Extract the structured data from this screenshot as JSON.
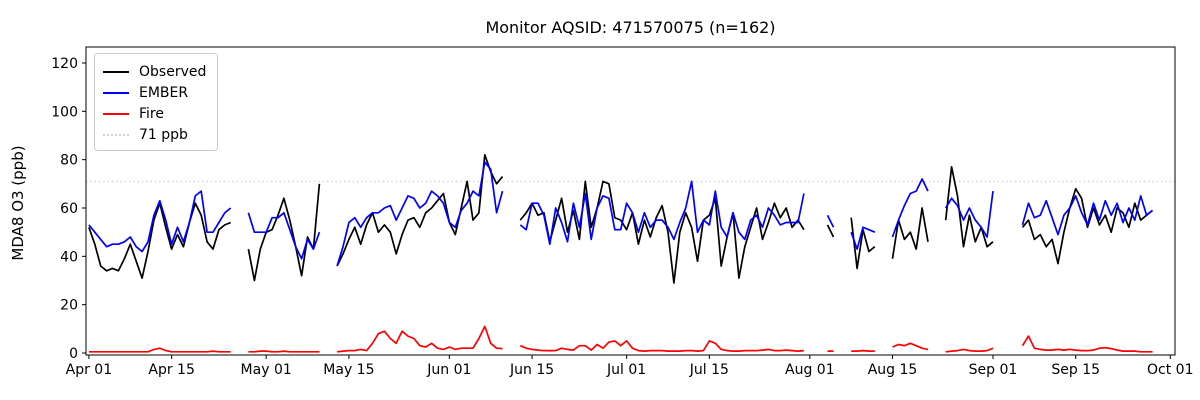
{
  "title": "Monitor AQSID: 471570075 (n=162)",
  "chart_data": {
    "type": "line",
    "title": "Monitor AQSID: 471570075 (n=162)",
    "ylabel": "MDA8 O3 (ppb)",
    "xlabel": "",
    "grid": false,
    "legend_position": "upper left",
    "y_ticks": [
      0,
      20,
      40,
      60,
      80,
      100,
      120
    ],
    "ylim": [
      -0.83,
      126.62
    ],
    "xlim_days": [
      -0.49,
      183.8
    ],
    "x_ticks": [
      {
        "label": "Apr 01",
        "day": 0
      },
      {
        "label": "Apr 15",
        "day": 14
      },
      {
        "label": "May 01",
        "day": 30
      },
      {
        "label": "May 15",
        "day": 44
      },
      {
        "label": "Jun 01",
        "day": 61
      },
      {
        "label": "Jun 15",
        "day": 75
      },
      {
        "label": "Jul 01",
        "day": 91
      },
      {
        "label": "Jul 15",
        "day": 105
      },
      {
        "label": "Aug 01",
        "day": 122
      },
      {
        "label": "Aug 15",
        "day": 136
      },
      {
        "label": "Sep 01",
        "day": 153
      },
      {
        "label": "Sep 15",
        "day": 167
      },
      {
        "label": "Oct 01",
        "day": 183
      }
    ],
    "threshold": {
      "label": "71 ppb",
      "value": 71,
      "color": "#d3d3d3",
      "style": "dotted"
    },
    "legend_items": [
      {
        "label": "Observed",
        "color": "#000000",
        "style": "solid"
      },
      {
        "label": "EMBER",
        "color": "#0000ff",
        "style": "solid"
      },
      {
        "label": "Fire",
        "color": "#ff0000",
        "style": "solid"
      },
      {
        "label": "71 ppb",
        "color": "#d3d3d3",
        "style": "dotted"
      }
    ],
    "x_start_label": "Apr 01",
    "n_points": 162,
    "series": [
      {
        "name": "Observed",
        "color": "#000000",
        "values": [
          52,
          45,
          36,
          34,
          35,
          34,
          39,
          45,
          38,
          31,
          42,
          55,
          62,
          52,
          43,
          49,
          44,
          54,
          62,
          57,
          46,
          43,
          51,
          53,
          54,
          null,
          null,
          43,
          30,
          43,
          50,
          51,
          57,
          64,
          55,
          44,
          32,
          48,
          43,
          70,
          null,
          null,
          36,
          41,
          47,
          52,
          45,
          53,
          58,
          50,
          53,
          50,
          41,
          49,
          55,
          56,
          52,
          58,
          60,
          63,
          66,
          54,
          49,
          60,
          71,
          55,
          58,
          82,
          75,
          70,
          73,
          null,
          null,
          55,
          58,
          62,
          57,
          58,
          46,
          55,
          64,
          50,
          59,
          47,
          71,
          52,
          60,
          71,
          70,
          56,
          55,
          51,
          58,
          45,
          55,
          48,
          56,
          61,
          50,
          29,
          50,
          58,
          52,
          38,
          55,
          57,
          64,
          36,
          48,
          58,
          31,
          44,
          52,
          60,
          47,
          54,
          62,
          56,
          60,
          52,
          55,
          51,
          null,
          null,
          null,
          53,
          48,
          null,
          null,
          56,
          35,
          51,
          42,
          44,
          null,
          null,
          39,
          55,
          47,
          50,
          43,
          60,
          46,
          null,
          null,
          55,
          77,
          65,
          44,
          57,
          46,
          52,
          44,
          46,
          null,
          null,
          null,
          null,
          52,
          55,
          47,
          49,
          44,
          47,
          37,
          50,
          60,
          68,
          64,
          52,
          60,
          53,
          57,
          50,
          60,
          58,
          52,
          62,
          55,
          57,
          59
        ]
      },
      {
        "name": "EMBER",
        "color": "#0000ff",
        "values": [
          53,
          50,
          47,
          44,
          45,
          45,
          46,
          48,
          44,
          42,
          46,
          57,
          63,
          55,
          45,
          52,
          46,
          54,
          65,
          67,
          50,
          50,
          54,
          58,
          60,
          null,
          null,
          58,
          50,
          50,
          50,
          56,
          56,
          58,
          51,
          44,
          39,
          47,
          43,
          50,
          null,
          null,
          36,
          44,
          54,
          56,
          52,
          56,
          58,
          58,
          60,
          61,
          55,
          60,
          65,
          64,
          60,
          62,
          67,
          65,
          62,
          54,
          52,
          59,
          62,
          67,
          65,
          79,
          76,
          58,
          67,
          null,
          null,
          53,
          51,
          62,
          62,
          57,
          45,
          60,
          54,
          46,
          62,
          52,
          66,
          47,
          60,
          65,
          64,
          51,
          51,
          62,
          58,
          50,
          58,
          52,
          55,
          55,
          52,
          47,
          54,
          60,
          71,
          50,
          55,
          53,
          67,
          52,
          48,
          58,
          50,
          47,
          55,
          57,
          52,
          60,
          57,
          53,
          54,
          54,
          54,
          66,
          null,
          null,
          null,
          57,
          52,
          null,
          null,
          50,
          43,
          52,
          51,
          50,
          null,
          null,
          48,
          55,
          61,
          66,
          67,
          72,
          67,
          null,
          null,
          60,
          64,
          61,
          55,
          60,
          55,
          52,
          48,
          67,
          null,
          null,
          null,
          null,
          53,
          62,
          56,
          57,
          63,
          56,
          49,
          57,
          60,
          65,
          58,
          53,
          62,
          55,
          63,
          57,
          62,
          54,
          60,
          55,
          65,
          57,
          59
        ]
      },
      {
        "name": "Fire",
        "color": "#ff0000",
        "values": [
          0.5,
          0.5,
          0.5,
          0.5,
          0.5,
          0.5,
          0.5,
          0.5,
          0.5,
          0.5,
          0.5,
          1.5,
          2,
          1,
          0.5,
          0.5,
          0.5,
          0.5,
          0.5,
          0.5,
          0.5,
          0.8,
          0.5,
          0.5,
          0.5,
          null,
          null,
          0.5,
          0.5,
          0.8,
          0.8,
          0.5,
          0.5,
          0.8,
          0.5,
          0.5,
          0.5,
          0.5,
          0.5,
          0.5,
          null,
          null,
          0.5,
          0.8,
          1,
          1,
          1.5,
          1,
          4,
          8,
          9,
          6,
          4,
          9,
          7,
          6,
          3,
          2.5,
          4,
          2,
          1.5,
          2.5,
          1.5,
          2,
          2,
          2,
          6,
          11,
          4,
          2,
          1.8,
          null,
          null,
          3,
          2,
          1.5,
          1.2,
          1,
          1,
          1,
          2,
          1.5,
          1.2,
          3,
          3,
          1.2,
          3.5,
          2,
          4.5,
          5,
          3,
          5,
          2,
          1,
          0.8,
          1,
          1,
          1,
          0.8,
          0.8,
          0.8,
          1,
          1,
          0.8,
          1,
          5,
          4,
          1.5,
          1,
          0.8,
          0.8,
          1,
          1,
          1,
          1.2,
          1.5,
          1,
          1,
          1.2,
          1,
          0.8,
          1,
          null,
          null,
          null,
          0.8,
          0.8,
          null,
          null,
          0.8,
          0.8,
          1,
          0.8,
          0.8,
          null,
          null,
          2.5,
          3.5,
          3,
          4,
          3,
          2,
          1.5,
          null,
          null,
          0.5,
          0.8,
          1,
          1.5,
          1,
          0.8,
          0.8,
          1,
          2,
          null,
          null,
          null,
          null,
          3,
          7,
          2,
          1.5,
          1.2,
          1.2,
          1.5,
          1.2,
          1.5,
          1.2,
          1,
          1,
          1.2,
          2,
          2.2,
          1.8,
          1.2,
          0.8,
          0.8,
          0.8,
          0.5,
          0.5,
          0.5
        ]
      }
    ]
  }
}
